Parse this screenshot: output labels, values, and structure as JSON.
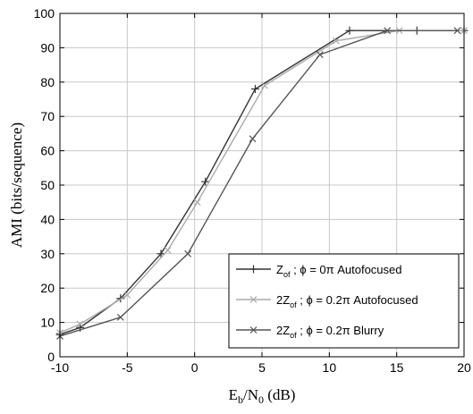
{
  "chart_data": {
    "type": "line",
    "title": "",
    "xlabel": {
      "main": "E",
      "sub1": "b",
      "mid": "/N",
      "sub2": "0",
      "rest": " (dB)"
    },
    "ylabel": "AMI (bits/sequence)",
    "xlim": [
      -10,
      20
    ],
    "ylim": [
      0,
      100
    ],
    "xticks": [
      "-10",
      "-5",
      "0",
      "5",
      "10",
      "15",
      "20"
    ],
    "yticks": [
      "0",
      "10",
      "20",
      "30",
      "40",
      "50",
      "60",
      "70",
      "80",
      "90",
      "100"
    ],
    "grid": true,
    "legend_position": "bottom-right",
    "series": [
      {
        "name": "Z_of ; φ = 0π Autofocused",
        "legend": {
          "a": "Z",
          "sub": "of",
          "b": " ; ϕ = 0π Autofocused"
        },
        "marker": "plus",
        "color": "#333333",
        "x": [
          -10,
          -8.5,
          -5.5,
          -2.5,
          0.8,
          4.5,
          11.5,
          16.5,
          20
        ],
        "y": [
          6.5,
          8.5,
          17,
          30,
          51,
          78,
          95,
          95,
          95
        ]
      },
      {
        "name": "2Z_of ; φ = 0.2π Autofocused",
        "legend": {
          "a": "2Z",
          "sub": "of",
          "b": " ; ϕ = 0.2π Autofocused"
        },
        "marker": "x",
        "color": "#aaaaaa",
        "x": [
          -10,
          -8.5,
          -5,
          -2,
          0.2,
          5.2,
          10.5,
          15.2,
          20
        ],
        "y": [
          7,
          9.5,
          18,
          31,
          45,
          79,
          92,
          95,
          95
        ]
      },
      {
        "name": "2Z_of ; φ = 0.2π Blurry",
        "legend": {
          "a": "2Z",
          "sub": "of",
          "b": " ; ϕ = 0.2π Blurry"
        },
        "marker": "x",
        "color": "#555555",
        "x": [
          -10,
          -5.5,
          -0.5,
          4.3,
          9.3,
          14.3,
          19.5
        ],
        "y": [
          6,
          11.5,
          30,
          63.5,
          88,
          95,
          95
        ]
      }
    ]
  }
}
